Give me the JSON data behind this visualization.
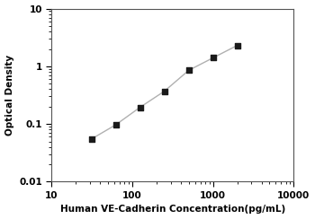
{
  "x": [
    31.25,
    62.5,
    125,
    250,
    500,
    1000,
    2000
  ],
  "y": [
    0.055,
    0.097,
    0.195,
    0.37,
    0.85,
    1.4,
    2.3
  ],
  "xlim": [
    10,
    10000
  ],
  "ylim": [
    0.01,
    10
  ],
  "xlabel": "Human VE-Cadherin Concentration(pg/mL)",
  "ylabel": "Optical Density",
  "xticks": [
    10,
    100,
    1000,
    10000
  ],
  "xtick_labels": [
    "10",
    "100",
    "1000",
    "10000"
  ],
  "yticks": [
    0.01,
    0.1,
    1,
    10
  ],
  "ytick_labels": [
    "0.01",
    "0.1",
    "1",
    "10"
  ],
  "line_color": "#b0b0b0",
  "marker_color": "#1a1a1a",
  "marker_style": "s",
  "marker_size": 5,
  "line_width": 1.0,
  "xlabel_fontsize": 7.5,
  "ylabel_fontsize": 7.5,
  "tick_fontsize": 7.5,
  "background_color": "#ffffff"
}
